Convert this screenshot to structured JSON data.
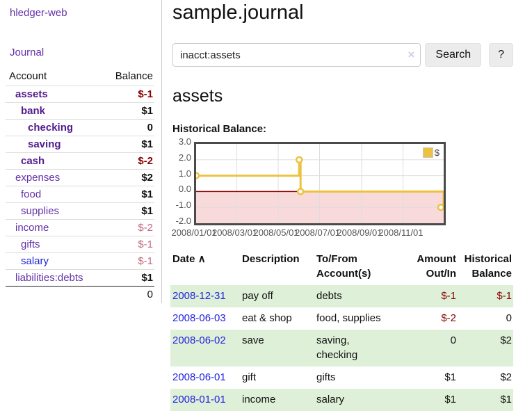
{
  "sidebar": {
    "brand": "hledger-web",
    "journal_link": "Journal",
    "table": {
      "headers": {
        "account": "Account",
        "balance": "Balance"
      },
      "accounts": [
        {
          "name": "assets",
          "balance": "$-1",
          "level": 1,
          "selected": true,
          "negative": true
        },
        {
          "name": "bank",
          "balance": "$1",
          "level": 2,
          "selected": true,
          "negative": false
        },
        {
          "name": "checking",
          "balance": "0",
          "level": 3,
          "selected": true,
          "negative": false
        },
        {
          "name": "saving",
          "balance": "$1",
          "level": 3,
          "selected": true,
          "negative": false
        },
        {
          "name": "cash",
          "balance": "$-2",
          "level": 2,
          "selected": true,
          "negative": true
        },
        {
          "name": "expenses",
          "balance": "$2",
          "level": 1,
          "selected": false,
          "negative": false
        },
        {
          "name": "food",
          "balance": "$1",
          "level": 2,
          "selected": false,
          "negative": false
        },
        {
          "name": "supplies",
          "balance": "$1",
          "level": 2,
          "selected": false,
          "negative": false
        },
        {
          "name": "income",
          "balance": "$-2",
          "level": 1,
          "selected": false,
          "negative": true
        },
        {
          "name": "gifts",
          "balance": "$-1",
          "level": 2,
          "selected": false,
          "negative": true
        },
        {
          "name": "salary",
          "balance": "$-1",
          "level": 2,
          "selected": false,
          "negative": true
        },
        {
          "name": "liabilities:debts",
          "balance": "$1",
          "level": 1,
          "selected": false,
          "negative": false
        }
      ],
      "total": "0"
    }
  },
  "main": {
    "title": "sample.journal",
    "search": {
      "value": "inacct:assets",
      "clear_icon": "×",
      "search_button": "Search",
      "help_button": "?"
    },
    "account_heading": "assets",
    "chart_title": "Historical Balance:"
  },
  "chart_data": {
    "type": "line",
    "style": "step-with-markers",
    "title": "Historical Balance",
    "legend": {
      "label": "$",
      "position": "top-right"
    },
    "series": [
      {
        "name": "$",
        "color": "#edc240",
        "points": [
          {
            "date": "2008-01-01",
            "value": 1
          },
          {
            "date": "2008-06-01",
            "value": 2
          },
          {
            "date": "2008-06-03",
            "value": 0
          },
          {
            "date": "2008-12-31",
            "value": -1
          }
        ]
      }
    ],
    "points_days": [
      [
        0,
        1
      ],
      [
        152,
        2
      ],
      [
        154,
        0
      ],
      [
        365,
        -1
      ]
    ],
    "x_span_days": 365,
    "ylim": [
      -2,
      3
    ],
    "y_ticks": [
      {
        "value": 3,
        "label": "3.0"
      },
      {
        "value": 2,
        "label": "2.0"
      },
      {
        "value": 1,
        "label": "1.0"
      },
      {
        "value": 0,
        "label": "0.0"
      },
      {
        "value": -1,
        "label": "-1.0"
      },
      {
        "value": -2,
        "label": "-2.0"
      }
    ],
    "x_ticks": [
      {
        "day": 0,
        "label": "2008/01/01"
      },
      {
        "day": 60,
        "label": "2008/03/01"
      },
      {
        "day": 121,
        "label": "2008/05/01"
      },
      {
        "day": 182,
        "label": "2008/07/01"
      },
      {
        "day": 244,
        "label": "2008/09/01"
      },
      {
        "day": 305,
        "label": "2008/11/01"
      }
    ],
    "grid": true,
    "negative_region_fill": "#f9dada",
    "zero_line_color": "#8b0000",
    "grid_color": "#dddddd",
    "border_color": "#4a4a4a"
  },
  "register": {
    "headers": {
      "date": "Date",
      "sort_icon": "∧",
      "description": "Description",
      "accounts": "To/From\nAccount(s)",
      "amount": "Amount\nOut/In",
      "balance": "Historical\nBalance"
    },
    "rows": [
      {
        "date": "2008-12-31",
        "description": "pay off",
        "accounts": "debts",
        "amount": "$-1",
        "balance": "$-1"
      },
      {
        "date": "2008-06-03",
        "description": "eat & shop",
        "accounts": "food, supplies",
        "amount": "$-2",
        "balance": "0"
      },
      {
        "date": "2008-06-02",
        "description": "save",
        "accounts": "saving,\nchecking",
        "amount": "0",
        "balance": "$2"
      },
      {
        "date": "2008-06-01",
        "description": "gift",
        "accounts": "gifts",
        "amount": "$1",
        "balance": "$2"
      },
      {
        "date": "2008-01-01",
        "description": "income",
        "accounts": "salary",
        "amount": "$1",
        "balance": "$1"
      }
    ]
  },
  "colors": {
    "link_purple": "#6331a8",
    "link_purple_bold": "#521b8d",
    "link_blue": "#2323dd",
    "negative_bold": "#8b0000",
    "negative_light": "#c2697c",
    "row_green": "#dff0d8",
    "series_gold": "#edc240",
    "negative_region": "#f9dada"
  }
}
